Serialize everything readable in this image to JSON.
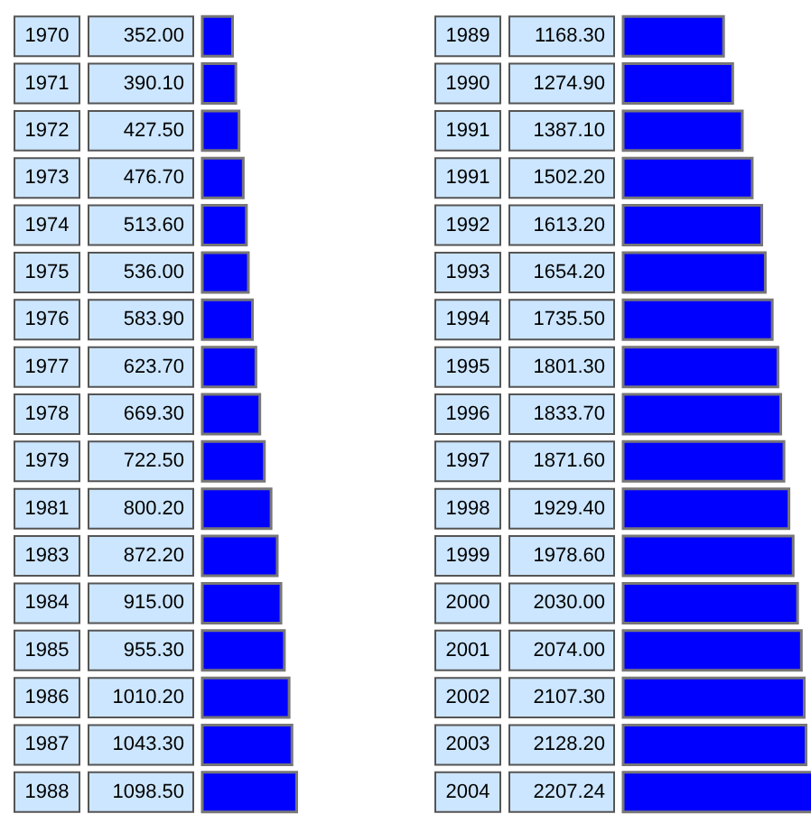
{
  "chart_data": [
    {
      "type": "bar",
      "orientation": "horizontal",
      "color": "#0000ff",
      "categories": [
        "1970",
        "1971",
        "1972",
        "1973",
        "1974",
        "1975",
        "1976",
        "1977",
        "1978",
        "1979",
        "1981",
        "1983",
        "1984",
        "1985",
        "1986",
        "1987",
        "1988"
      ],
      "values": [
        352.0,
        390.1,
        427.5,
        476.7,
        513.6,
        536.0,
        583.9,
        623.7,
        669.3,
        722.5,
        800.2,
        872.2,
        915.0,
        955.3,
        1010.2,
        1043.3,
        1098.5
      ],
      "value_labels": [
        "352.00",
        "390.10",
        "427.50",
        "476.70",
        "513.60",
        "536.00",
        "583.90",
        "623.70",
        "669.30",
        "722.50",
        "800.20",
        "872.20",
        "915.00",
        "955.30",
        "1010.20",
        "1043.30",
        "1098.50"
      ]
    },
    {
      "type": "bar",
      "orientation": "horizontal",
      "color": "#0000ff",
      "categories": [
        "1989",
        "1990",
        "1991",
        "1991",
        "1992",
        "1993",
        "1994",
        "1995",
        "1996",
        "1997",
        "1998",
        "1999",
        "2000",
        "2001",
        "2002",
        "2003",
        "2004"
      ],
      "values": [
        1168.3,
        1274.9,
        1387.1,
        1502.2,
        1613.2,
        1654.2,
        1735.5,
        1801.3,
        1833.7,
        1871.6,
        1929.4,
        1978.6,
        2030.0,
        2074.0,
        2107.3,
        2128.2,
        2207.24
      ],
      "value_labels": [
        "1168.30",
        "1274.90",
        "1387.10",
        "1502.20",
        "1613.20",
        "1654.20",
        "1735.50",
        "1801.30",
        "1833.70",
        "1871.60",
        "1929.40",
        "1978.60",
        "2030.00",
        "2074.00",
        "2107.30",
        "2128.20",
        "2207.24"
      ]
    }
  ]
}
